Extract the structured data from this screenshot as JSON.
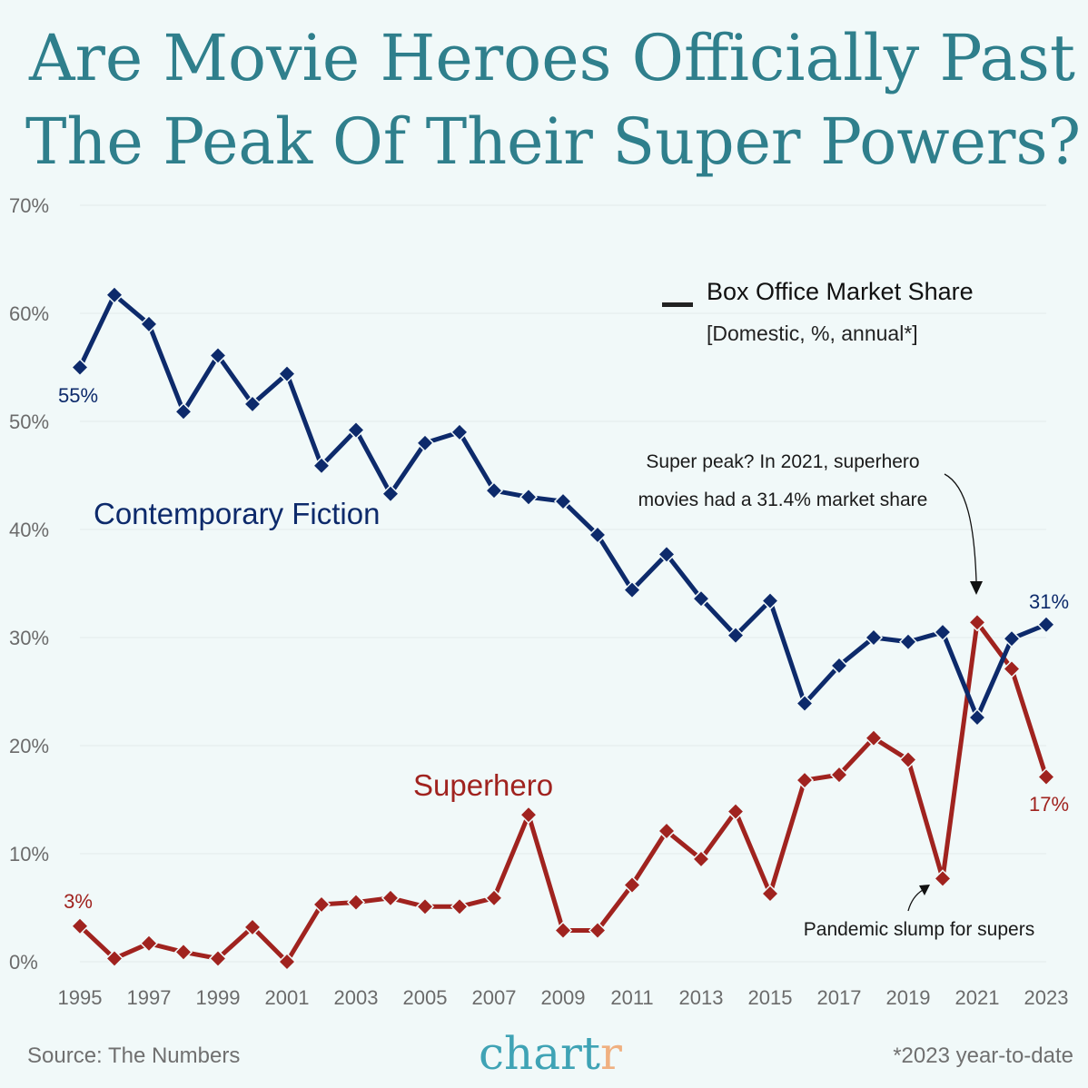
{
  "title_lines": [
    "Are Movie Heroes Officially Past",
    "The Peak Of Their Super Powers?"
  ],
  "legend": {
    "title": "Box Office Market Share",
    "subtitle": "[Domestic, %, annual*]"
  },
  "annotations": {
    "peak_line1": "Super peak? In 2021, superhero",
    "peak_line2": "movies had a 31.4% market share",
    "pandemic": "Pandemic slump for supers"
  },
  "footer": {
    "source": "Source: The Numbers",
    "logo": "chartr",
    "note": "*2023 year-to-date"
  },
  "colors": {
    "contemporary": "#0d2a6b",
    "superhero": "#a0231f",
    "title": "#2f7f8c",
    "background": "#f1f9f9"
  },
  "chart_data": {
    "type": "line",
    "x": [
      1995,
      1996,
      1997,
      1998,
      1999,
      2000,
      2001,
      2002,
      2003,
      2004,
      2005,
      2006,
      2007,
      2008,
      2009,
      2010,
      2011,
      2012,
      2013,
      2014,
      2015,
      2016,
      2017,
      2018,
      2019,
      2020,
      2021,
      2022,
      2023
    ],
    "xticks": [
      "1995",
      "1997",
      "1999",
      "2001",
      "2003",
      "2005",
      "2007",
      "2009",
      "2011",
      "2013",
      "2015",
      "2017",
      "2019",
      "2021",
      "2023"
    ],
    "yticks": [
      "0%",
      "10%",
      "20%",
      "30%",
      "40%",
      "50%",
      "60%",
      "70%"
    ],
    "ylim": [
      0,
      70
    ],
    "grid": true,
    "series": [
      {
        "name": "Contemporary Fiction",
        "values": [
          55,
          61.7,
          59,
          50.9,
          56.1,
          51.6,
          54.4,
          45.9,
          49.2,
          43.3,
          48,
          49,
          43.6,
          43,
          42.6,
          39.5,
          34.4,
          37.7,
          33.6,
          30.2,
          33.4,
          23.9,
          27.4,
          30,
          29.6,
          30.5,
          22.6,
          29.9,
          31.2
        ],
        "start_label": "55%",
        "end_label": "31%"
      },
      {
        "name": "Superhero",
        "values": [
          3.3,
          0.3,
          1.7,
          0.9,
          0.3,
          3.2,
          0,
          5.3,
          5.5,
          5.9,
          5.1,
          5.1,
          5.9,
          13.6,
          2.9,
          2.9,
          7.1,
          12.1,
          9.5,
          13.9,
          6.3,
          16.8,
          17.3,
          20.7,
          18.7,
          7.7,
          31.4,
          27.1,
          17.1
        ],
        "start_label": "3%",
        "end_label": "17%"
      }
    ]
  }
}
